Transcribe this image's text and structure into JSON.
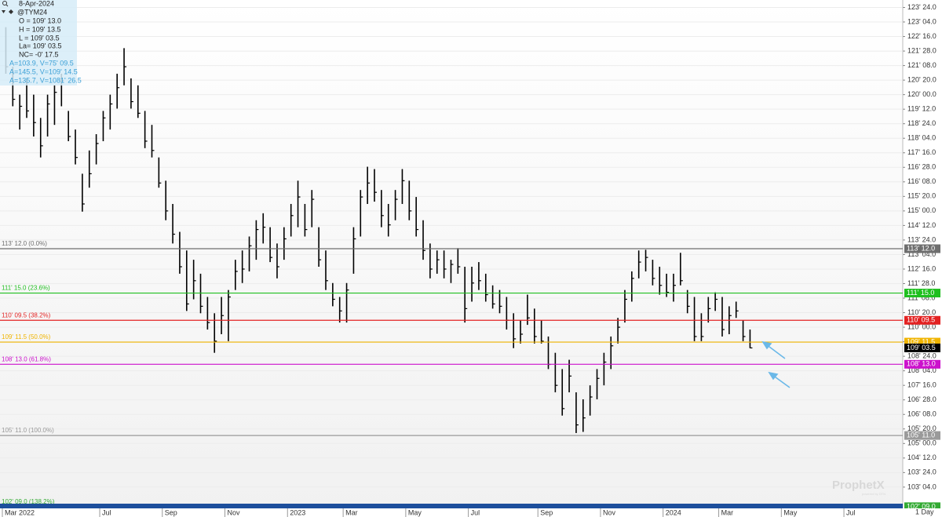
{
  "chart_data": {
    "type": "ohlc",
    "color": "#000000",
    "grid": true,
    "categories": [
      "Mar 2022",
      null,
      null,
      null,
      null,
      null,
      null,
      null,
      null,
      null,
      null,
      null,
      null,
      null,
      "Jul",
      null,
      null,
      null,
      null,
      null,
      null,
      null,
      null,
      "Sep",
      null,
      null,
      null,
      null,
      null,
      null,
      null,
      null,
      "Nov",
      null,
      null,
      null,
      null,
      null,
      null,
      null,
      null,
      "2023",
      null,
      null,
      null,
      null,
      null,
      null,
      null,
      "Mar",
      null,
      null,
      null,
      null,
      null,
      null,
      null,
      null,
      "May",
      null,
      null,
      null,
      null,
      null,
      null,
      null,
      null,
      "Jul",
      null,
      null,
      null,
      null,
      null,
      null,
      null,
      null,
      null,
      "Sep",
      null,
      null,
      null,
      null,
      null,
      null,
      null,
      null,
      "Nov",
      null,
      null,
      null,
      null,
      null,
      null,
      null,
      null,
      "2024",
      null,
      null,
      null,
      null,
      null,
      null,
      null,
      "Mar",
      null,
      null,
      null,
      null,
      null,
      null,
      null,
      null,
      "May",
      null,
      null,
      null,
      null,
      null,
      null,
      null,
      null,
      "Jul",
      null,
      null,
      null,
      null,
      null,
      null,
      null,
      null
    ],
    "high": [
      122.9,
      121.2,
      120.0,
      120.7,
      120.0,
      119.0,
      120.0,
      120.4,
      120.9,
      119.3,
      118.5,
      116.6,
      117.6,
      118.3,
      119.3,
      120.0,
      120.9,
      122.0,
      120.7,
      120.4,
      119.3,
      118.7,
      117.3,
      116.3,
      115.3,
      114.1,
      113.3,
      112.9,
      112.3,
      111.3,
      110.6,
      111.3,
      111.6,
      112.9,
      113.3,
      113.9,
      114.6,
      114.9,
      114.3,
      113.6,
      114.3,
      115.3,
      116.3,
      115.3,
      115.9,
      114.3,
      113.3,
      111.9,
      111.3,
      111.9,
      114.3,
      115.9,
      116.9,
      116.8,
      115.9,
      115.3,
      115.9,
      116.8,
      116.3,
      115.6,
      114.6,
      113.6,
      113.3,
      113.3,
      112.9,
      113.4,
      112.6,
      112.6,
      112.8,
      112.3,
      111.8,
      111.6,
      111.3,
      110.6,
      110.3,
      111.4,
      110.8,
      110.3,
      109.6,
      108.9,
      108.2,
      108.6,
      107.2,
      106.9,
      107.5,
      108.2,
      108.9,
      109.6,
      110.4,
      111.6,
      112.4,
      113.3,
      113.33,
      112.9,
      112.6,
      112.3,
      112.3,
      113.2,
      111.6,
      111.3,
      110.6,
      111.3,
      111.5,
      111.3,
      110.9,
      111.1,
      110.3,
      109.9,
      null,
      null,
      null,
      null,
      null,
      null,
      null,
      null,
      null,
      null,
      null,
      null,
      null,
      null,
      null,
      null,
      null,
      null,
      null,
      null,
      null,
      null
    ],
    "low": [
      120.9,
      119.5,
      118.5,
      119.0,
      118.2,
      117.3,
      118.2,
      118.7,
      119.5,
      118.0,
      117.0,
      114.97,
      116.0,
      117.0,
      118.0,
      118.5,
      119.4,
      120.4,
      119.4,
      119.0,
      117.7,
      117.3,
      116.0,
      114.6,
      113.6,
      112.3,
      110.7,
      111.2,
      110.6,
      109.9,
      108.9,
      109.7,
      109.4,
      111.6,
      111.9,
      112.4,
      112.9,
      113.6,
      112.8,
      112.1,
      112.9,
      113.9,
      114.3,
      113.9,
      114.3,
      112.6,
      111.6,
      110.9,
      110.2,
      110.2,
      112.3,
      113.9,
      115.3,
      115.4,
      114.3,
      113.9,
      114.6,
      115.3,
      114.6,
      113.9,
      112.9,
      112.1,
      112.3,
      112.1,
      111.9,
      112.3,
      110.2,
      111.1,
      111.6,
      111.1,
      110.8,
      110.6,
      109.9,
      109.1,
      109.3,
      110.1,
      109.3,
      109.3,
      108.2,
      107.2,
      106.2,
      107.2,
      105.45,
      105.5,
      106.2,
      106.9,
      107.5,
      108.2,
      109.3,
      110.2,
      111.1,
      112.1,
      112.4,
      111.8,
      111.4,
      111.3,
      111.1,
      111.8,
      110.6,
      109.4,
      109.4,
      110.2,
      110.7,
      109.6,
      109.7,
      110.4,
      109.4,
      109.1,
      null,
      null,
      null,
      null,
      null,
      null,
      null,
      null,
      null,
      null,
      null,
      null,
      null,
      null,
      null,
      null,
      null,
      null,
      null,
      null,
      null,
      null
    ],
    "close": [
      121.2,
      119.8,
      119.5,
      119.3,
      118.8,
      117.8,
      119.6,
      120.1,
      120.6,
      118.2,
      117.3,
      115.3,
      116.6,
      117.9,
      119.0,
      119.6,
      120.3,
      121.2,
      119.7,
      119.2,
      118.0,
      117.6,
      116.2,
      115.0,
      114.0,
      112.6,
      111.0,
      112.0,
      110.9,
      110.2,
      109.4,
      110.5,
      111.3,
      112.4,
      112.5,
      113.5,
      114.2,
      114.3,
      113.0,
      112.6,
      113.8,
      114.8,
      115.6,
      114.2,
      115.5,
      112.9,
      112.0,
      111.2,
      110.7,
      111.6,
      113.8,
      115.6,
      116.2,
      115.8,
      114.8,
      114.4,
      115.5,
      116.3,
      115.0,
      114.2,
      113.3,
      112.5,
      112.9,
      112.5,
      112.7,
      112.6,
      110.8,
      111.9,
      112.0,
      111.4,
      111.0,
      110.9,
      110.3,
      109.5,
      109.7,
      110.4,
      109.6,
      109.4,
      108.4,
      107.5,
      106.5,
      107.9,
      105.8,
      106.1,
      107.0,
      107.8,
      108.5,
      109.2,
      110.0,
      111.2,
      112.1,
      112.8,
      113.0,
      112.1,
      111.8,
      111.5,
      111.8,
      112.0,
      110.9,
      109.6,
      109.6,
      110.8,
      111.2,
      109.9,
      110.5,
      110.7,
      109.6,
      109.11,
      null,
      null,
      null,
      null,
      null,
      null,
      null,
      null,
      null,
      null,
      null,
      null,
      null,
      null,
      null,
      null,
      null,
      null,
      null,
      null,
      null,
      null
    ],
    "ylim": [
      102.21,
      124.07
    ],
    "yticks": [
      {
        "value": 103.125,
        "label": "103' 04.0"
      },
      {
        "value": 103.75,
        "label": "103' 24.0"
      },
      {
        "value": 104.375,
        "label": "104' 12.0"
      },
      {
        "value": 105,
        "label": "105' 00.0"
      },
      {
        "value": 105.625,
        "label": "105' 20.0"
      },
      {
        "value": 106.25,
        "label": "106' 08.0"
      },
      {
        "value": 106.875,
        "label": "106' 28.0"
      },
      {
        "value": 107.5,
        "label": "107' 16.0"
      },
      {
        "value": 108.125,
        "label": "108' 04.0"
      },
      {
        "value": 108.75,
        "label": "108' 24.0"
      },
      {
        "value": 109.375,
        "label": "109' 12.0"
      },
      {
        "value": 110,
        "label": "110' 00.0"
      },
      {
        "value": 110.625,
        "label": "110' 20.0"
      },
      {
        "value": 111.25,
        "label": "111' 08.0"
      },
      {
        "value": 111.875,
        "label": "111' 28.0"
      },
      {
        "value": 112.5,
        "label": "112' 16.0"
      },
      {
        "value": 113.125,
        "label": "113' 04.0"
      },
      {
        "value": 113.75,
        "label": "113' 24.0"
      },
      {
        "value": 114.375,
        "label": "114' 12.0"
      },
      {
        "value": 115,
        "label": "115' 00.0"
      },
      {
        "value": 115.625,
        "label": "115' 20.0"
      },
      {
        "value": 116.25,
        "label": "116' 08.0"
      },
      {
        "value": 116.875,
        "label": "116' 28.0"
      },
      {
        "value": 117.5,
        "label": "117' 16.0"
      },
      {
        "value": 118.125,
        "label": "118' 04.0"
      },
      {
        "value": 118.75,
        "label": "118' 24.0"
      },
      {
        "value": 119.375,
        "label": "119' 12.0"
      },
      {
        "value": 120,
        "label": "120' 00.0"
      },
      {
        "value": 120.625,
        "label": "120' 20.0"
      },
      {
        "value": 121.25,
        "label": "121' 08.0"
      },
      {
        "value": 121.875,
        "label": "121' 28.0"
      },
      {
        "value": 122.5,
        "label": "122' 16.0"
      },
      {
        "value": 123.125,
        "label": "123' 04.0"
      },
      {
        "value": 123.75,
        "label": "123' 24.0"
      }
    ],
    "levels": [
      {
        "value": 113.375,
        "label": "113' 12.0 (0.0%)",
        "axis_label": "113' 12.0",
        "color": "#6e6e6e"
      },
      {
        "value": 111.46875,
        "label": "111' 15.0 (23.6%)",
        "axis_label": "111' 15.0",
        "color": "#1fbf1f"
      },
      {
        "value": 110.296875,
        "label": "110' 09.5 (38.2%)",
        "axis_label": "110' 09.5",
        "color": "#e32222"
      },
      {
        "value": 109.359375,
        "label": "109' 11.5 (50.0%)",
        "axis_label": "109' 11.5",
        "color": "#f0b400"
      },
      {
        "value": 108.40625,
        "label": "108' 13.0 (61.8%)",
        "axis_label": "108' 13.0",
        "color": "#cc11cc"
      },
      {
        "value": 105.34375,
        "label": "105' 11.0 (100.0%)",
        "axis_label": "105' 11.0",
        "color": "#9a9a9a"
      },
      {
        "value": 102.28125,
        "label": "102' 09.0 (138.2%)",
        "axis_label": "102' 09.0",
        "color": "#33aa33"
      }
    ],
    "last": {
      "value": 109.109375,
      "label": "109' 03.5"
    },
    "interval": "1 Day",
    "watermark": "ProphetX",
    "watermark_sub": "powered by DTN"
  },
  "info_panel": {
    "date": "8-Apr-2024",
    "symbol": "@TYM24",
    "lines": [
      "O = 109' 13.0",
      "H = 109' 13.5",
      "L = 109' 03.5",
      "La= 109' 03.5",
      "NC= -0' 17.5"
    ],
    "studies": [
      "A=103.9, V=75' 09.5",
      "A=145.5, V=109' 14.5",
      "A=135.7, V=1081' 26.5"
    ]
  }
}
